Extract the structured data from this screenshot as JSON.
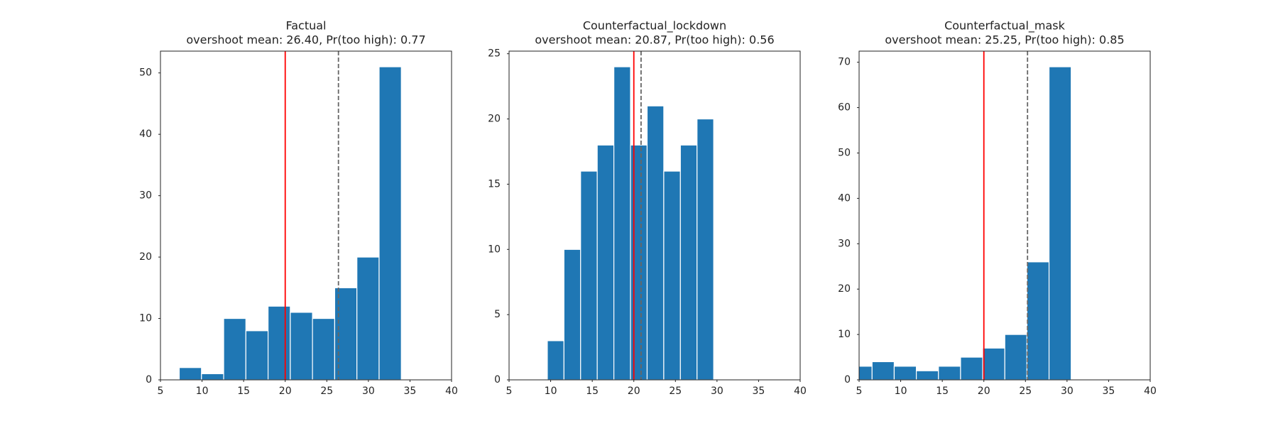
{
  "chart_data": [
    {
      "type": "histogram",
      "title": "Factual",
      "subtitle": "overshoot mean: 26.40, Pr(too high): 0.77",
      "bins": [
        7.26,
        9.93,
        12.6,
        15.27,
        17.94,
        20.61,
        23.28,
        25.95,
        28.62,
        31.29,
        33.96
      ],
      "counts": [
        2,
        1,
        10,
        8,
        12,
        11,
        10,
        15,
        20,
        51
      ],
      "color": "#1f77b4",
      "xlim": [
        5,
        40
      ],
      "xticks": [
        5,
        10,
        15,
        20,
        25,
        30,
        35,
        40
      ],
      "ylim": [
        0,
        53.55
      ],
      "yticks": [
        0,
        10,
        20,
        30,
        40,
        50
      ],
      "vlines": [
        {
          "value": 20,
          "color": "#ff0000",
          "style": "solid"
        },
        {
          "value": 26.4,
          "color": "#666666",
          "style": "dashed"
        }
      ]
    },
    {
      "type": "histogram",
      "title": "Counterfactual_lockdown",
      "subtitle": "overshoot mean: 20.87, Pr(too high): 0.56",
      "bins": [
        9.6,
        11.6,
        13.6,
        15.6,
        17.6,
        19.6,
        21.6,
        23.6,
        25.6,
        27.6,
        29.6
      ],
      "counts": [
        3,
        10,
        16,
        18,
        24,
        18,
        21,
        16,
        18,
        20
      ],
      "color": "#1f77b4",
      "xlim": [
        5,
        40
      ],
      "xticks": [
        5,
        10,
        15,
        20,
        25,
        30,
        35,
        40
      ],
      "ylim": [
        0,
        25.2
      ],
      "yticks": [
        0,
        5,
        10,
        15,
        20,
        25
      ],
      "vlines": [
        {
          "value": 20,
          "color": "#ff0000",
          "style": "solid"
        },
        {
          "value": 20.87,
          "color": "#666666",
          "style": "dashed"
        }
      ]
    },
    {
      "type": "histogram",
      "title": "Counterfactual_mask",
      "subtitle": "overshoot mean: 25.25, Pr(too high): 0.85",
      "bins": [
        3.9,
        6.56,
        9.22,
        11.88,
        14.54,
        17.2,
        19.86,
        22.52,
        25.18,
        27.84,
        30.5
      ],
      "counts": [
        3,
        4,
        3,
        2,
        3,
        5,
        7,
        10,
        26,
        69
      ],
      "color": "#1f77b4",
      "xlim": [
        5,
        40
      ],
      "xticks": [
        5,
        10,
        15,
        20,
        25,
        30,
        35,
        40
      ],
      "ylim": [
        0,
        72.45
      ],
      "yticks": [
        0,
        10,
        20,
        30,
        40,
        50,
        60,
        70
      ],
      "vlines": [
        {
          "value": 20,
          "color": "#ff0000",
          "style": "solid"
        },
        {
          "value": 25.25,
          "color": "#666666",
          "style": "dashed"
        }
      ]
    }
  ]
}
